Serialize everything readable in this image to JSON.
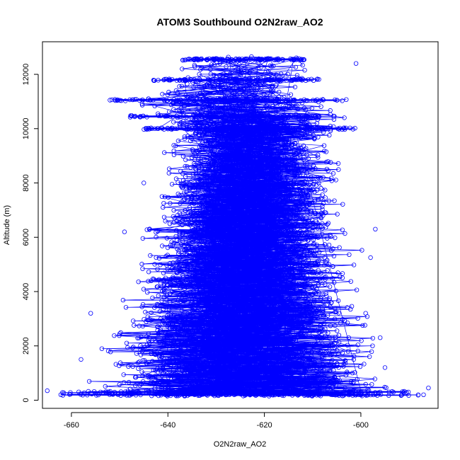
{
  "chart_data": {
    "type": "scatter",
    "title": "ATOM3 Southbound O2N2raw_AO2",
    "xlabel": "O2N2raw_AO2",
    "ylabel": "Altitude (m)",
    "xlim": [
      -666,
      -584
    ],
    "ylim": [
      -300,
      13200
    ],
    "xticks": [
      -660,
      -640,
      -620,
      -600
    ],
    "yticks": [
      0,
      2000,
      4000,
      6000,
      8000,
      10000,
      12000
    ],
    "grid": false,
    "legend": "none",
    "series_style": "points connected by lines (open circles)",
    "envelope": [
      {
        "alt": 200,
        "x_min": -663,
        "x_max": -587,
        "x_center": -625
      },
      {
        "alt": 1000,
        "x_min": -659,
        "x_max": -590,
        "x_center": -625
      },
      {
        "alt": 2000,
        "x_min": -657,
        "x_max": -592,
        "x_center": -625
      },
      {
        "alt": 3000,
        "x_min": -654,
        "x_max": -595,
        "x_center": -625
      },
      {
        "alt": 4000,
        "x_min": -651,
        "x_max": -597,
        "x_center": -626
      },
      {
        "alt": 5000,
        "x_min": -648,
        "x_max": -599,
        "x_center": -626
      },
      {
        "alt": 6000,
        "x_min": -646,
        "x_max": -596,
        "x_center": -627
      },
      {
        "alt": 7000,
        "x_min": -644,
        "x_max": -599,
        "x_center": -627
      },
      {
        "alt": 8000,
        "x_min": -643,
        "x_max": -600,
        "x_center": -626
      },
      {
        "alt": 9000,
        "x_min": -642,
        "x_max": -601,
        "x_center": -626
      },
      {
        "alt": 10000,
        "x_min": -645,
        "x_max": -600,
        "x_center": -624
      },
      {
        "alt": 11000,
        "x_min": -652,
        "x_max": -603,
        "x_center": -625
      },
      {
        "alt": 11800,
        "x_min": -643,
        "x_max": -607,
        "x_center": -624
      },
      {
        "alt": 12600,
        "x_min": -639,
        "x_max": -610,
        "x_center": -624
      }
    ],
    "dense_levels": [
      {
        "alt": 200,
        "x_min": -663,
        "x_max": -587
      },
      {
        "alt": 300,
        "x_min": -663,
        "x_max": -590
      },
      {
        "alt": 10000,
        "x_min": -645,
        "x_max": -601
      },
      {
        "alt": 10450,
        "x_min": -648,
        "x_max": -605
      },
      {
        "alt": 11050,
        "x_min": -652,
        "x_max": -603
      },
      {
        "alt": 11800,
        "x_min": -643,
        "x_max": -607
      },
      {
        "alt": 12550,
        "x_min": -637,
        "x_max": -611
      }
    ],
    "sample_points": [
      {
        "x": -601,
        "y": 12400
      },
      {
        "x": -636,
        "y": 11650
      },
      {
        "x": -652,
        "y": 11050
      },
      {
        "x": -645,
        "y": 8000
      },
      {
        "x": -649,
        "y": 6200
      },
      {
        "x": -597,
        "y": 6300
      },
      {
        "x": -598,
        "y": 5250
      },
      {
        "x": -656,
        "y": 3200
      },
      {
        "x": -599,
        "y": 3200
      },
      {
        "x": -658,
        "y": 1500
      },
      {
        "x": -596,
        "y": 2300
      },
      {
        "x": -595,
        "y": 1200
      },
      {
        "x": -665,
        "y": 350
      },
      {
        "x": -586,
        "y": 450
      },
      {
        "x": -587,
        "y": 200
      }
    ],
    "color": "#0000ff"
  }
}
